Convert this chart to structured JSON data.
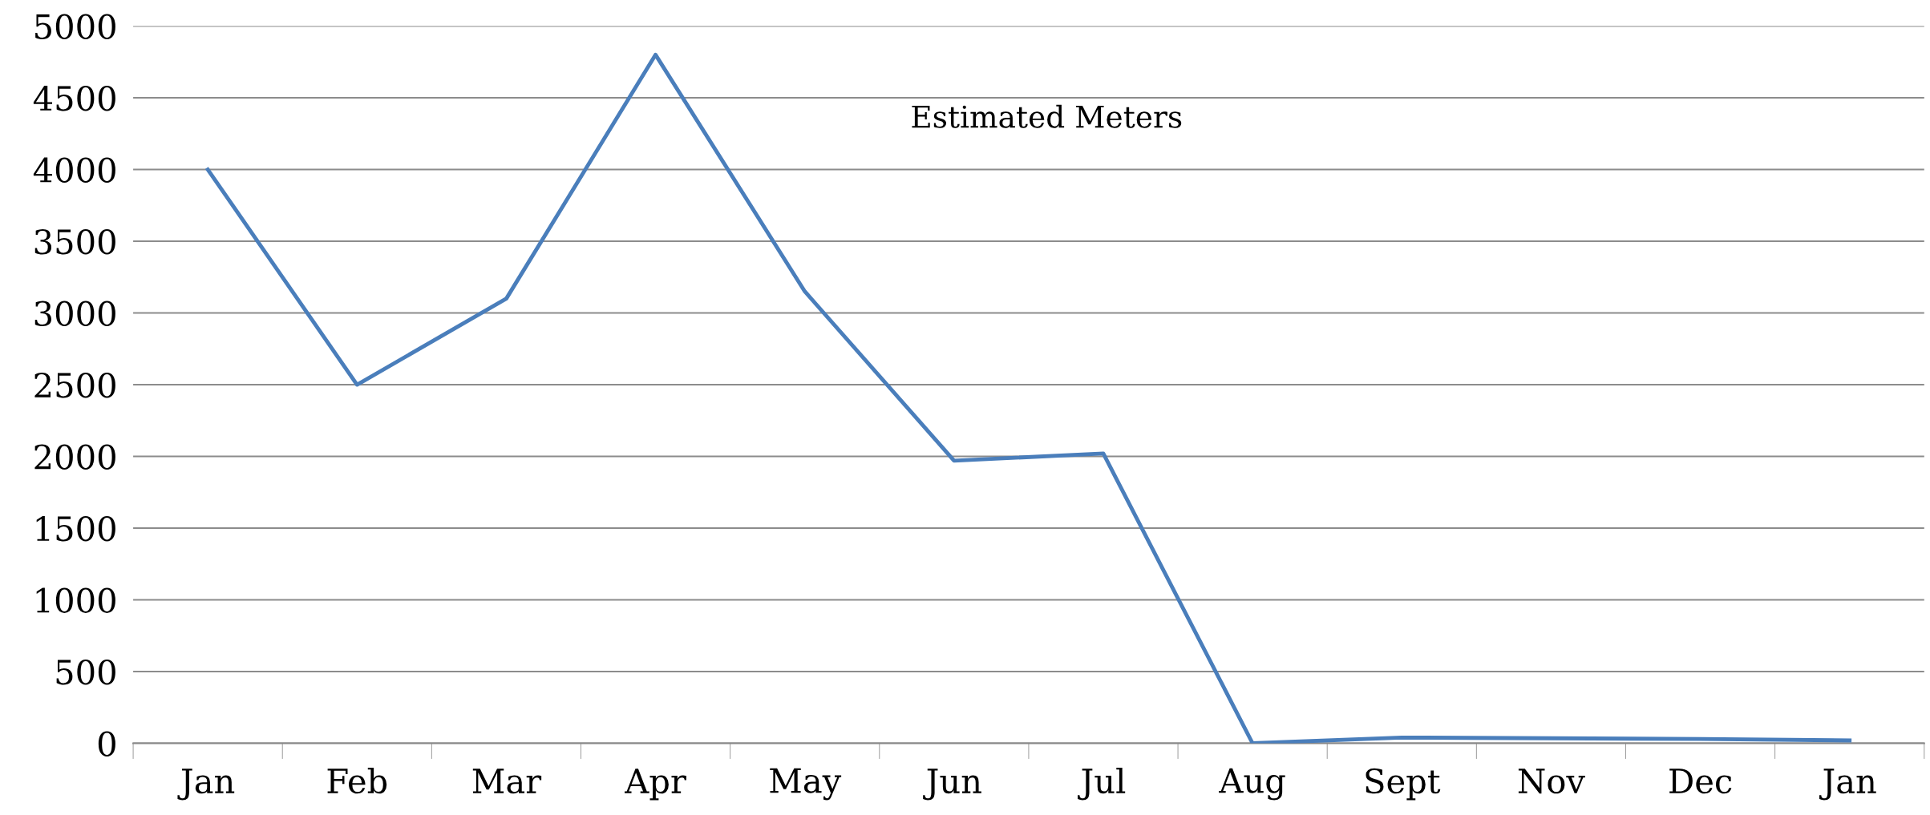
{
  "chart_data": {
    "type": "line",
    "title": "Estimated Meters",
    "categories": [
      "Jan",
      "Feb",
      "Mar",
      "Apr",
      "May",
      "Jun",
      "Jul",
      "Aug",
      "Sept",
      "Nov",
      "Dec",
      "Jan"
    ],
    "series": [
      {
        "color": "#4a7ebb",
        "values": [
          4000,
          2500,
          3100,
          4800,
          3150,
          1970,
          2020,
          0,
          40,
          35,
          30,
          20
        ]
      }
    ],
    "ylim": [
      0,
      5000
    ],
    "yticks": [
      0,
      500,
      1000,
      1500,
      2000,
      2500,
      3000,
      3500,
      4000,
      4500,
      5000
    ],
    "grid": "y",
    "marker": "none",
    "line_style": "solid"
  }
}
